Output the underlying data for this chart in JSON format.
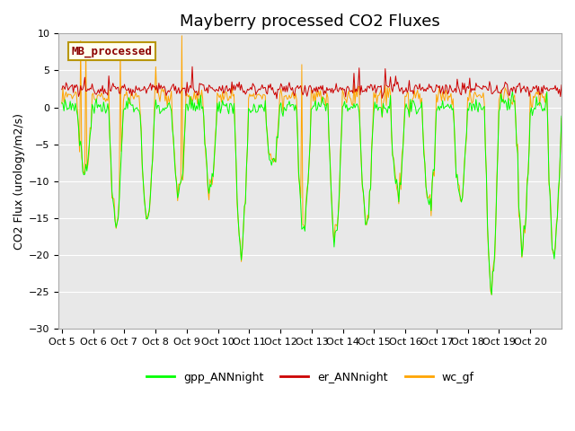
{
  "title": "Mayberry processed CO2 Fluxes",
  "ylabel": "CO2 Flux (urology/m2/s)",
  "ylim": [
    -30,
    10
  ],
  "plot_bg_color": "#e8e8e8",
  "fig_bg_color": "#ffffff",
  "grid_color": "#ffffff",
  "title_fontsize": 13,
  "label_fontsize": 9,
  "tick_fontsize": 8,
  "legend_entries": [
    "gpp_ANNnight",
    "er_ANNnight",
    "wc_gf"
  ],
  "legend_colors": [
    "#00ff00",
    "#cc0000",
    "#ffa500"
  ],
  "inset_label": "MB_processed",
  "inset_label_color": "#8b0000",
  "inset_bg_color": "#fffff0",
  "inset_border_color": "#b8960c",
  "x_tick_labels": [
    "Oct 5",
    "Oct 6",
    "Oct 7",
    "Oct 8",
    "Oct 9",
    "Oct 10",
    "Oct 11",
    "Oct 12",
    "Oct 13",
    "Oct 14",
    "Oct 15",
    "Oct 16",
    "Oct 17",
    "Oct 18",
    "Oct 19",
    "Oct 20"
  ],
  "n_points": 480,
  "seed": 12345
}
